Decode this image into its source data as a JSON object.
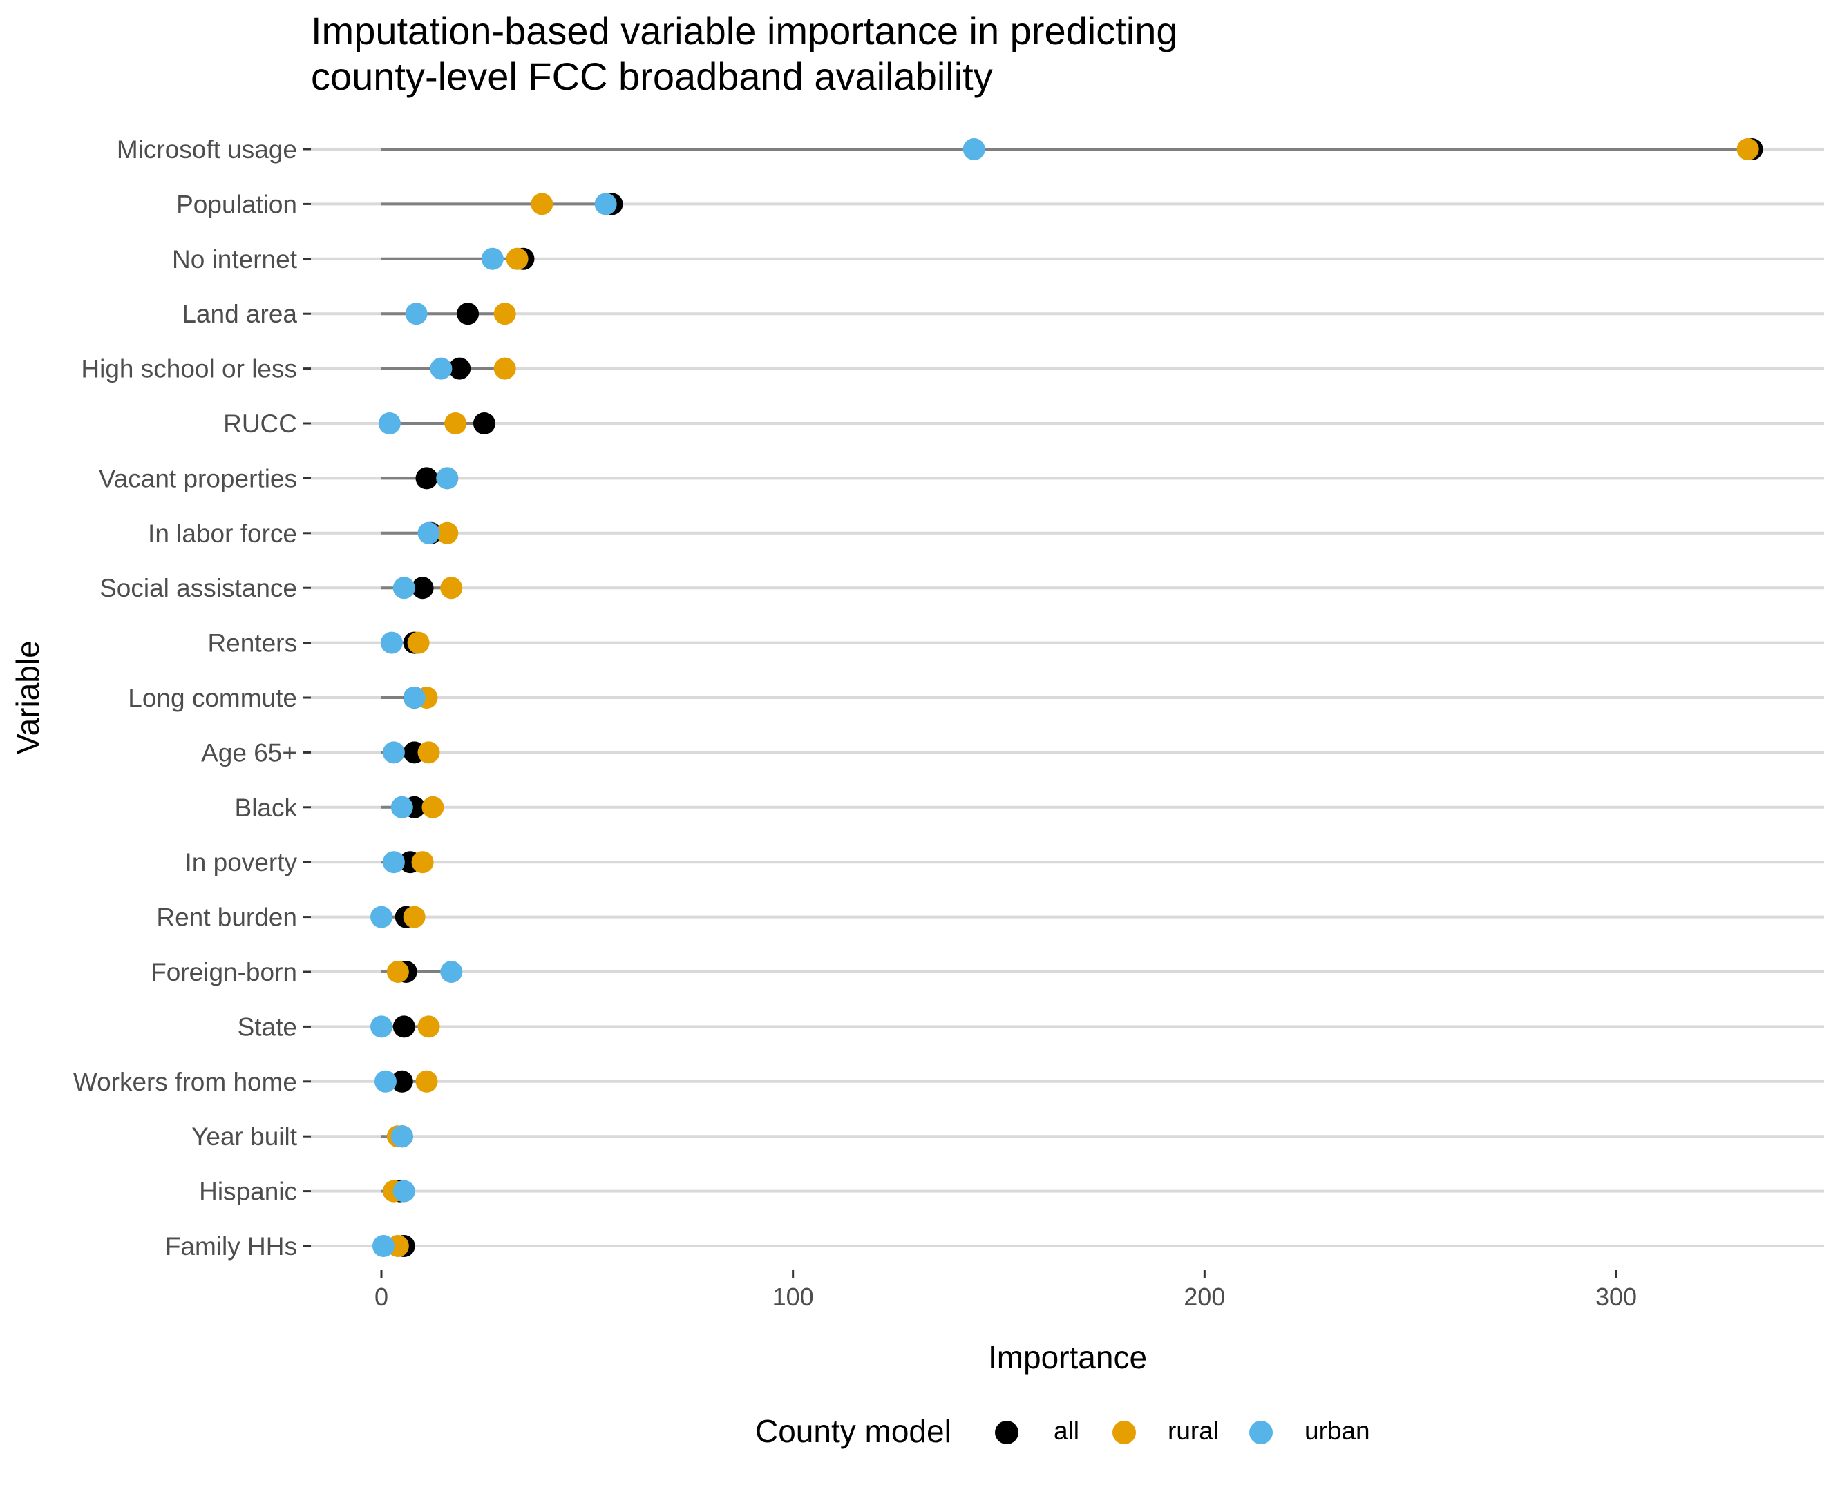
{
  "chart_data": {
    "type": "scatter",
    "title": "Imputation-based variable importance in predicting\ncounty-level FCC broadband availability",
    "xlabel": "Importance",
    "ylabel": "Variable",
    "xlim": [
      -15,
      350
    ],
    "xticks": [
      0,
      100,
      200,
      300
    ],
    "grid": "horizontal",
    "legend_position": "bottom",
    "legend_title": "County model",
    "categories": [
      "Microsoft usage",
      "Population",
      "No internet",
      "Land area",
      "High school or less",
      "RUCC",
      "Vacant properties",
      "In labor force",
      "Social assistance",
      "Renters",
      "Long commute",
      "Age 65+",
      "Black",
      "In poverty",
      "Rent burden",
      "Foreign-born",
      "State",
      "Workers from home",
      "Year built",
      "Hispanic",
      "Family HHs"
    ],
    "series": [
      {
        "name": "all",
        "color": "#000000",
        "values": [
          333,
          56,
          34.5,
          21,
          19,
          25,
          11,
          12,
          10,
          8,
          8,
          8,
          8,
          7,
          6,
          6,
          5.5,
          5,
          5,
          4.5,
          5.5
        ]
      },
      {
        "name": "rural",
        "color": "#E69F00",
        "values": [
          332,
          39,
          33,
          30,
          30,
          18,
          16,
          16,
          17,
          9,
          11,
          11.5,
          12.5,
          10,
          8,
          4,
          11.5,
          11,
          4,
          3,
          4
        ]
      },
      {
        "name": "urban",
        "color": "#56B4E9",
        "values": [
          144,
          54.5,
          27,
          8.5,
          14.5,
          2,
          16,
          11.5,
          5.5,
          2.5,
          8,
          3,
          5,
          3,
          0,
          17,
          0,
          1,
          5,
          5.5,
          0.5
        ]
      }
    ]
  }
}
